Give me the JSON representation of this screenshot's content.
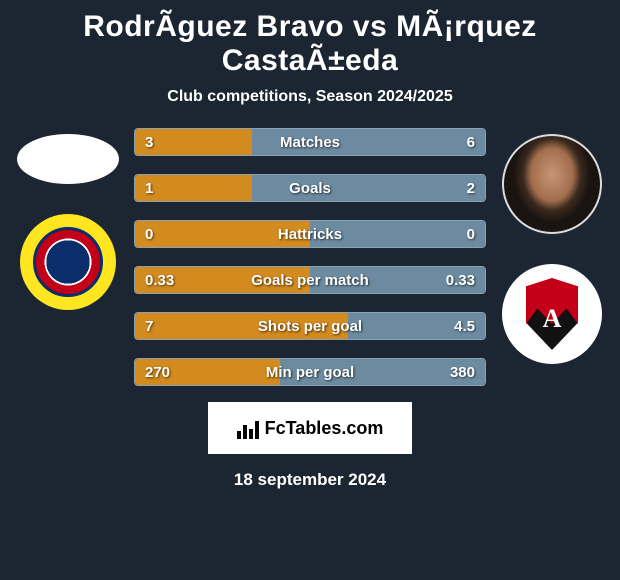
{
  "title": "RodrÃ­guez Bravo vs MÃ¡rquez CastaÃ±eda",
  "subtitle": "Club competitions, Season 2024/2025",
  "colors": {
    "left_fill": "#d38a1e",
    "right_fill": "#6d8ba0",
    "background": "#1c2632",
    "bar_border": "#8aa1b2",
    "brand_bg": "#ffffff",
    "brand_text": "#000000"
  },
  "stats": [
    {
      "label": "Matches",
      "left_val": "3",
      "right_val": "6",
      "left_pct": 33.3,
      "right_pct": 66.7
    },
    {
      "label": "Goals",
      "left_val": "1",
      "right_val": "2",
      "left_pct": 33.3,
      "right_pct": 66.7
    },
    {
      "label": "Hattricks",
      "left_val": "0",
      "right_val": "0",
      "left_pct": 50.0,
      "right_pct": 50.0
    },
    {
      "label": "Goals per match",
      "left_val": "0.33",
      "right_val": "0.33",
      "left_pct": 50.0,
      "right_pct": 50.0
    },
    {
      "label": "Shots per goal",
      "left_val": "7",
      "right_val": "4.5",
      "left_pct": 60.9,
      "right_pct": 39.1
    },
    {
      "label": "Min per goal",
      "left_val": "270",
      "right_val": "380",
      "left_pct": 41.5,
      "right_pct": 58.5
    }
  ],
  "brand": "FcTables.com",
  "date": "18 september 2024"
}
